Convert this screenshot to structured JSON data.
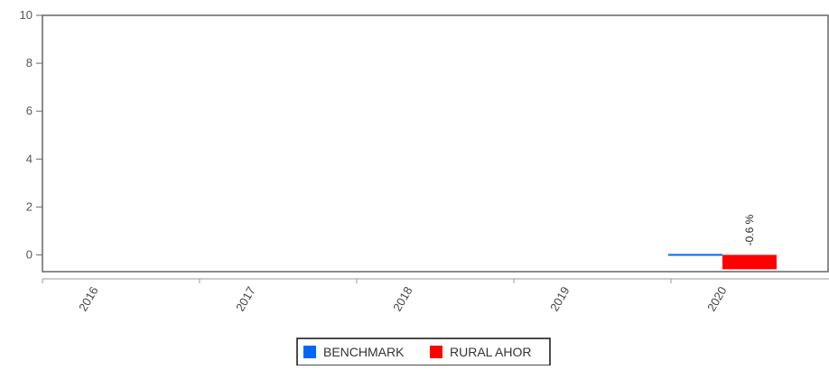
{
  "chart_data": {
    "type": "bar",
    "categories": [
      "2016",
      "2017",
      "2018",
      "2019",
      "2020"
    ],
    "series": [
      {
        "name": "BENCHMARK",
        "color": "#0066ff",
        "values": [
          null,
          null,
          null,
          null,
          0.03
        ],
        "labels": [
          null,
          null,
          null,
          null,
          null
        ]
      },
      {
        "name": "RURAL AHOR",
        "color": "#ff0000",
        "values": [
          null,
          null,
          null,
          null,
          -0.6
        ],
        "labels": [
          null,
          null,
          null,
          null,
          "-0.6 %"
        ]
      }
    ],
    "ylim": [
      -0.7,
      10
    ],
    "yticks": [
      0,
      2,
      4,
      6,
      8,
      10
    ],
    "grid": false,
    "legend_position": "bottom-center",
    "title": "",
    "xlabel": "",
    "ylabel": ""
  }
}
